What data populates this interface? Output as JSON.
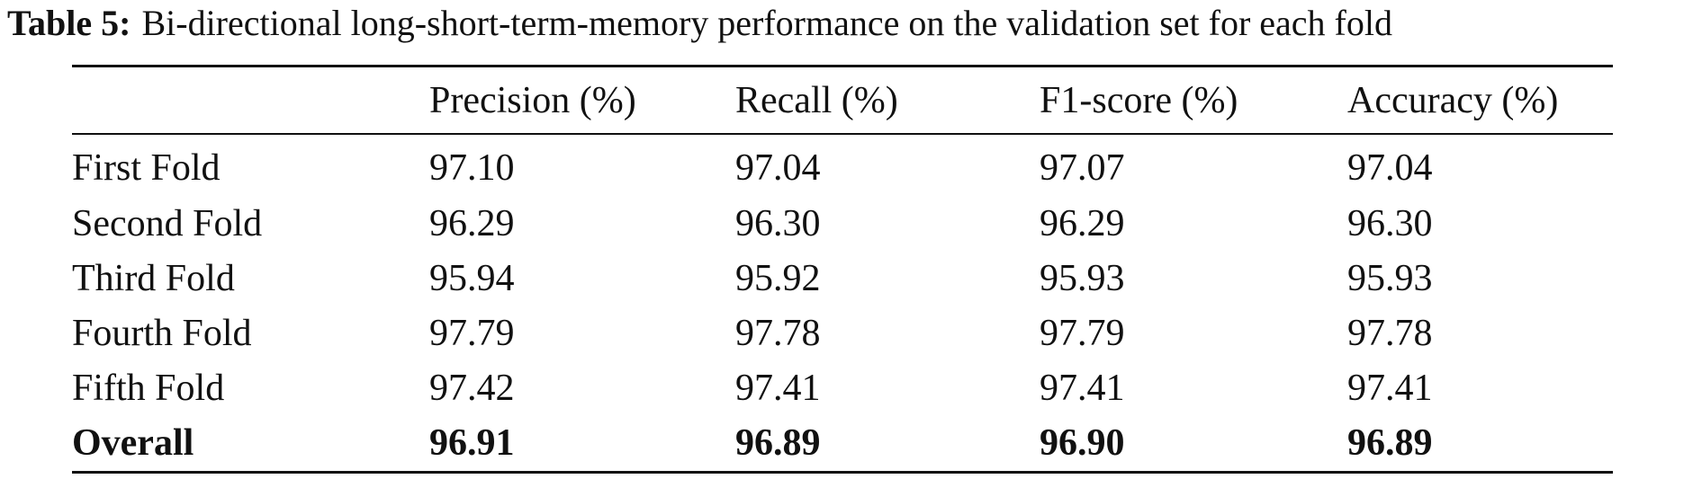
{
  "caption": {
    "label": "Table 5:",
    "text": "Bi-directional long-short-term-memory performance on the validation set for each fold"
  },
  "table": {
    "columns": [
      "",
      "Precision (%)",
      "Recall (%)",
      "F1-score (%)",
      "Accuracy (%)"
    ],
    "rows": [
      [
        "First Fold",
        "97.10",
        "97.04",
        "97.07",
        "97.04"
      ],
      [
        "Second Fold",
        "96.29",
        "96.30",
        "96.29",
        "96.30"
      ],
      [
        "Third Fold",
        "95.94",
        "95.92",
        "95.93",
        "95.93"
      ],
      [
        "Fourth Fold",
        "97.79",
        "97.78",
        "97.79",
        "97.78"
      ],
      [
        "Fifth Fold",
        "97.42",
        "97.41",
        "97.41",
        "97.41"
      ],
      [
        "Overall",
        "96.91",
        "96.89",
        "96.90",
        "96.89"
      ]
    ]
  }
}
